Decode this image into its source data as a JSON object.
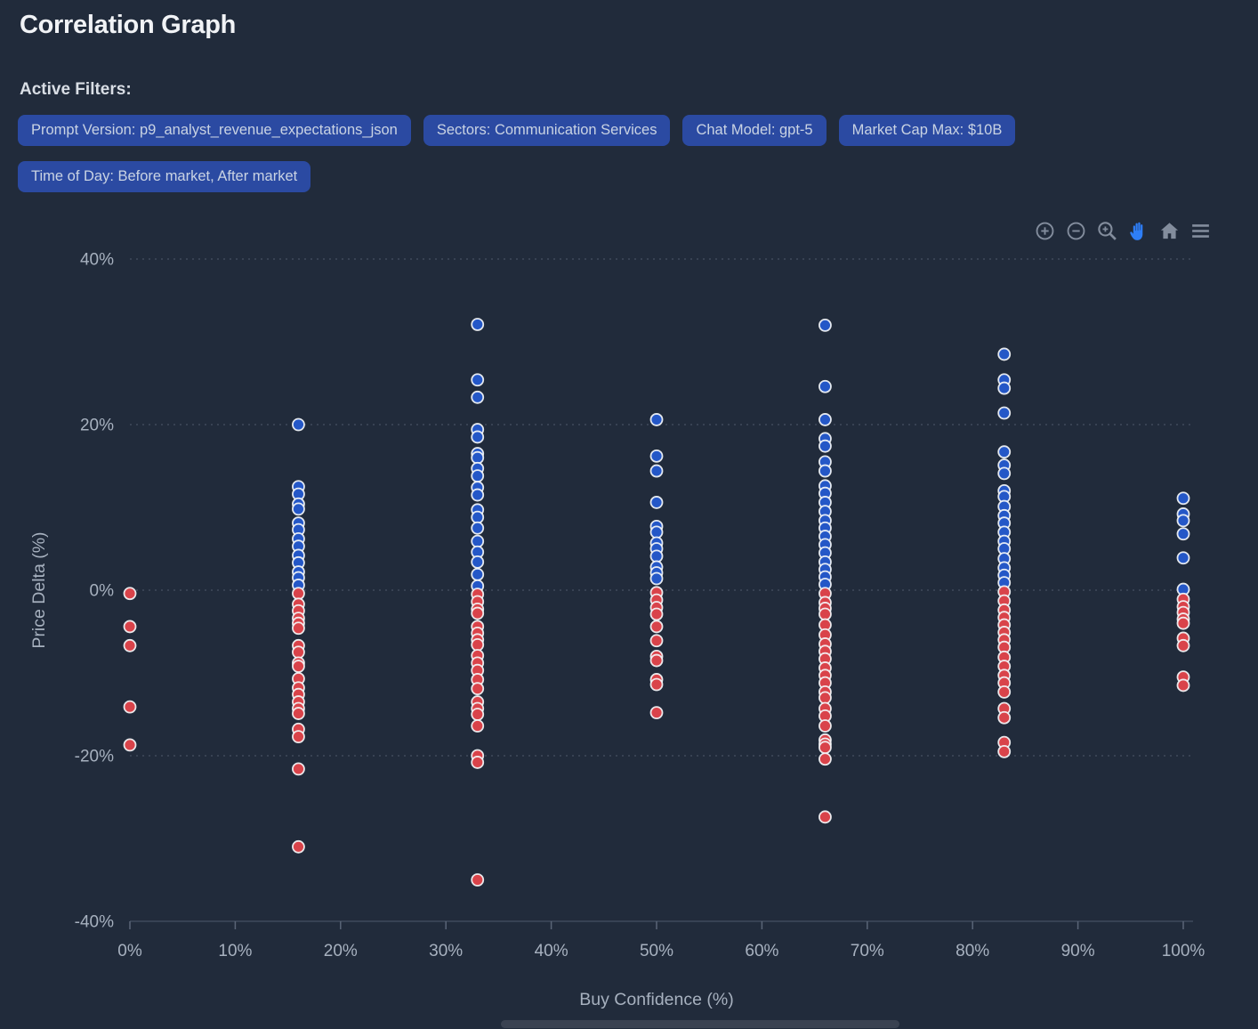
{
  "page": {
    "title": "Correlation Graph"
  },
  "filters": {
    "label": "Active Filters:",
    "chips": [
      {
        "label": "Prompt Version: p9_analyst_revenue_expectations_json"
      },
      {
        "label": "Sectors: Communication Services"
      },
      {
        "label": "Chat Model: gpt-5"
      },
      {
        "label": "Market Cap Max: $10B"
      },
      {
        "label": "Time of Day: Before market, After market"
      }
    ]
  },
  "toolbar": {
    "icons": [
      "zoom-in-icon",
      "zoom-out-icon",
      "box-zoom-icon",
      "pan-hand-icon",
      "home-reset-icon",
      "menu-icon"
    ],
    "active_icon": "pan-hand-icon"
  },
  "colors": {
    "background": "#212b3b",
    "chip_bg": "#2b4aa2",
    "chip_text": "#c9d3e3",
    "accent_active": "#2e7ef7",
    "icon_gray": "#838d9d",
    "dot_blue": "#2457c7",
    "dot_red": "#d9434a",
    "axis_text": "#a7b1bf",
    "grid": "rgba(132,144,162,0.38)",
    "axis_line": "#3f4a5c"
  },
  "chart_data": {
    "type": "scatter",
    "title": "",
    "xlabel": "Buy Confidence (%)",
    "ylabel": "Price Delta (%)",
    "xlim": [
      0,
      100
    ],
    "ylim": [
      -40,
      40
    ],
    "grid": "horizontal-dotted",
    "legend_position": "none",
    "x_ticks": [
      {
        "value": 0,
        "label": "0%"
      },
      {
        "value": 10,
        "label": "10%"
      },
      {
        "value": 20,
        "label": "20%"
      },
      {
        "value": 30,
        "label": "30%"
      },
      {
        "value": 40,
        "label": "40%"
      },
      {
        "value": 50,
        "label": "50%"
      },
      {
        "value": 60,
        "label": "60%"
      },
      {
        "value": 70,
        "label": "70%"
      },
      {
        "value": 80,
        "label": "80%"
      },
      {
        "value": 90,
        "label": "90%"
      },
      {
        "value": 100,
        "label": "100%"
      }
    ],
    "y_ticks": [
      {
        "value": 40,
        "label": "40%"
      },
      {
        "value": 20,
        "label": "20%"
      },
      {
        "value": 0,
        "label": "0%"
      },
      {
        "value": -20,
        "label": "-20%"
      },
      {
        "value": -40,
        "label": "-40%"
      }
    ],
    "series": [
      {
        "name": "blue",
        "color": "#2457c7",
        "points": [
          [
            16,
            20.0
          ],
          [
            16,
            12.5
          ],
          [
            16,
            11.6
          ],
          [
            16,
            10.4
          ],
          [
            16,
            9.8
          ],
          [
            16,
            8.1
          ],
          [
            16,
            7.3
          ],
          [
            16,
            6.2
          ],
          [
            16,
            5.3
          ],
          [
            16,
            4.2
          ],
          [
            16,
            3.3
          ],
          [
            16,
            2.2
          ],
          [
            16,
            1.5
          ],
          [
            16,
            0.6
          ],
          [
            33,
            32.1
          ],
          [
            33,
            25.4
          ],
          [
            33,
            23.3
          ],
          [
            33,
            19.4
          ],
          [
            33,
            18.5
          ],
          [
            33,
            16.5
          ],
          [
            33,
            16.0
          ],
          [
            33,
            14.7
          ],
          [
            33,
            13.8
          ],
          [
            33,
            12.4
          ],
          [
            33,
            11.5
          ],
          [
            33,
            9.7
          ],
          [
            33,
            8.8
          ],
          [
            33,
            7.5
          ],
          [
            33,
            5.9
          ],
          [
            33,
            4.6
          ],
          [
            33,
            3.4
          ],
          [
            33,
            1.9
          ],
          [
            33,
            0.5
          ],
          [
            50,
            20.6
          ],
          [
            50,
            16.2
          ],
          [
            50,
            14.4
          ],
          [
            50,
            10.6
          ],
          [
            50,
            7.7
          ],
          [
            50,
            7.0
          ],
          [
            50,
            5.7
          ],
          [
            50,
            5.0
          ],
          [
            50,
            4.1
          ],
          [
            50,
            2.8
          ],
          [
            50,
            2.1
          ],
          [
            50,
            1.4
          ],
          [
            66,
            32.0
          ],
          [
            66,
            24.6
          ],
          [
            66,
            20.6
          ],
          [
            66,
            18.3
          ],
          [
            66,
            17.4
          ],
          [
            66,
            15.5
          ],
          [
            66,
            14.4
          ],
          [
            66,
            12.6
          ],
          [
            66,
            11.7
          ],
          [
            66,
            10.6
          ],
          [
            66,
            9.5
          ],
          [
            66,
            8.4
          ],
          [
            66,
            7.5
          ],
          [
            66,
            6.5
          ],
          [
            66,
            5.5
          ],
          [
            66,
            4.5
          ],
          [
            66,
            3.4
          ],
          [
            66,
            2.5
          ],
          [
            66,
            1.6
          ],
          [
            66,
            0.7
          ],
          [
            83,
            28.5
          ],
          [
            83,
            25.4
          ],
          [
            83,
            24.4
          ],
          [
            83,
            21.4
          ],
          [
            83,
            16.7
          ],
          [
            83,
            15.1
          ],
          [
            83,
            14.1
          ],
          [
            83,
            12.0
          ],
          [
            83,
            11.3
          ],
          [
            83,
            10.1
          ],
          [
            83,
            9.0
          ],
          [
            83,
            8.1
          ],
          [
            83,
            7.0
          ],
          [
            83,
            5.9
          ],
          [
            83,
            5.0
          ],
          [
            83,
            3.8
          ],
          [
            83,
            2.7
          ],
          [
            83,
            1.8
          ],
          [
            83,
            0.9
          ],
          [
            100,
            11.1
          ],
          [
            100,
            9.2
          ],
          [
            100,
            8.4
          ],
          [
            100,
            6.8
          ],
          [
            100,
            3.9
          ],
          [
            100,
            0.1
          ]
        ]
      },
      {
        "name": "red",
        "color": "#d9434a",
        "points": [
          [
            0,
            -0.4
          ],
          [
            0,
            -4.4
          ],
          [
            0,
            -6.7
          ],
          [
            0,
            -14.1
          ],
          [
            0,
            -18.7
          ],
          [
            16,
            -0.4
          ],
          [
            16,
            -1.7
          ],
          [
            16,
            -2.5
          ],
          [
            16,
            -3.4
          ],
          [
            16,
            -4.0
          ],
          [
            16,
            -4.6
          ],
          [
            16,
            -6.7
          ],
          [
            16,
            -7.5
          ],
          [
            16,
            -8.8
          ],
          [
            16,
            -9.2
          ],
          [
            16,
            -10.7
          ],
          [
            16,
            -11.8
          ],
          [
            16,
            -12.6
          ],
          [
            16,
            -13.5
          ],
          [
            16,
            -14.3
          ],
          [
            16,
            -14.9
          ],
          [
            16,
            -16.8
          ],
          [
            16,
            -17.7
          ],
          [
            16,
            -21.6
          ],
          [
            16,
            -31.0
          ],
          [
            33,
            -0.5
          ],
          [
            33,
            -1.4
          ],
          [
            33,
            -2.3
          ],
          [
            33,
            -2.8
          ],
          [
            33,
            -4.4
          ],
          [
            33,
            -5.2
          ],
          [
            33,
            -6.0
          ],
          [
            33,
            -6.6
          ],
          [
            33,
            -7.9
          ],
          [
            33,
            -8.8
          ],
          [
            33,
            -9.7
          ],
          [
            33,
            -10.8
          ],
          [
            33,
            -11.9
          ],
          [
            33,
            -13.5
          ],
          [
            33,
            -14.3
          ],
          [
            33,
            -15.0
          ],
          [
            33,
            -16.4
          ],
          [
            33,
            -20.0
          ],
          [
            33,
            -20.8
          ],
          [
            33,
            -35.0
          ],
          [
            50,
            -0.3
          ],
          [
            50,
            -1.2
          ],
          [
            50,
            -2.1
          ],
          [
            50,
            -2.9
          ],
          [
            50,
            -4.4
          ],
          [
            50,
            -6.1
          ],
          [
            50,
            -8.0
          ],
          [
            50,
            -8.5
          ],
          [
            50,
            -10.8
          ],
          [
            50,
            -11.4
          ],
          [
            50,
            -14.8
          ],
          [
            66,
            -0.4
          ],
          [
            66,
            -1.5
          ],
          [
            66,
            -2.2
          ],
          [
            66,
            -2.9
          ],
          [
            66,
            -4.2
          ],
          [
            66,
            -5.4
          ],
          [
            66,
            -6.5
          ],
          [
            66,
            -7.4
          ],
          [
            66,
            -8.3
          ],
          [
            66,
            -9.4
          ],
          [
            66,
            -10.3
          ],
          [
            66,
            -11.2
          ],
          [
            66,
            -12.3
          ],
          [
            66,
            -13.0
          ],
          [
            66,
            -14.3
          ],
          [
            66,
            -15.2
          ],
          [
            66,
            -16.4
          ],
          [
            66,
            -18.1
          ],
          [
            66,
            -18.6
          ],
          [
            66,
            -19.0
          ],
          [
            66,
            -20.4
          ],
          [
            66,
            -27.4
          ],
          [
            83,
            -0.2
          ],
          [
            83,
            -1.3
          ],
          [
            83,
            -2.4
          ],
          [
            83,
            -3.3
          ],
          [
            83,
            -4.2
          ],
          [
            83,
            -5.1
          ],
          [
            83,
            -6.0
          ],
          [
            83,
            -6.9
          ],
          [
            83,
            -8.1
          ],
          [
            83,
            -9.2
          ],
          [
            83,
            -10.3
          ],
          [
            83,
            -11.2
          ],
          [
            83,
            -12.3
          ],
          [
            83,
            -14.3
          ],
          [
            83,
            -15.4
          ],
          [
            83,
            -18.4
          ],
          [
            83,
            -19.5
          ],
          [
            100,
            -1.1
          ],
          [
            100,
            -2.0
          ],
          [
            100,
            -2.7
          ],
          [
            100,
            -3.5
          ],
          [
            100,
            -4.0
          ],
          [
            100,
            -5.8
          ],
          [
            100,
            -6.7
          ],
          [
            100,
            -10.5
          ],
          [
            100,
            -11.5
          ]
        ]
      }
    ]
  }
}
